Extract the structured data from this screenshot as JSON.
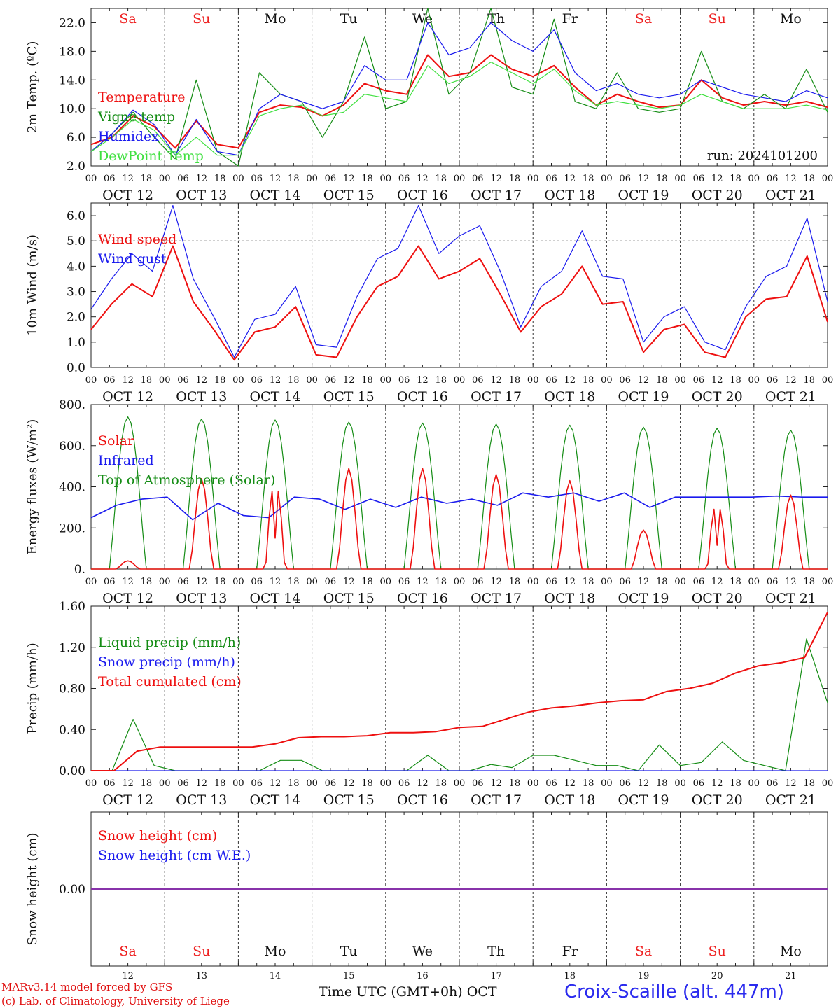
{
  "colors": {
    "red": "#ee1010",
    "darkgreen": "#148c14",
    "blue": "#1a1aee",
    "lightgreen": "#40e040",
    "purple": "#8833aa",
    "weekend": "#ee2020",
    "weekday": "#111111"
  },
  "days": {
    "weekday_labels": [
      "Sa",
      "Su",
      "Mo",
      "Tu",
      "We",
      "Th",
      "Fr",
      "Sa",
      "Su",
      "Mo"
    ],
    "weekend_flags": [
      true,
      true,
      false,
      false,
      false,
      false,
      false,
      true,
      true,
      false
    ],
    "date_labels": [
      "OCT 12",
      "OCT 13",
      "OCT 14",
      "OCT 15",
      "OCT 16",
      "OCT 17",
      "OCT 18",
      "OCT 19",
      "OCT 20",
      "OCT 21"
    ],
    "hour_ticks": [
      "00",
      "06",
      "12",
      "18"
    ],
    "end_hour": "00",
    "bottom_day_numbers": [
      "12",
      "13",
      "14",
      "15",
      "16",
      "17",
      "18",
      "19",
      "20",
      "21"
    ]
  },
  "footer": {
    "credit_line1": "MARv3.14 model forced by GFS",
    "credit_line2": "(c) Lab. of Climatology, University of Liege",
    "xaxis_title": "Time UTC (GMT+0h) OCT",
    "station": "Croix-Scaille (alt. 447m)"
  },
  "chart_data": [
    {
      "type": "line",
      "ylabel": "2m Temp. (ºC)",
      "ylim": [
        2,
        24
      ],
      "yticks": [
        "2.0",
        "6.0",
        "10.0",
        "14.0",
        "18.0",
        "22.0"
      ],
      "annotation": "run: 2024101200",
      "x_hours": [
        0,
        6,
        12,
        18,
        24,
        30,
        36,
        42,
        48,
        54,
        60,
        66,
        72,
        78,
        84,
        90,
        96,
        102,
        108,
        114,
        120,
        126,
        132,
        138,
        144,
        150,
        156,
        162,
        168,
        174,
        180,
        186,
        192,
        198,
        204,
        210,
        216,
        222,
        228,
        234,
        240
      ],
      "series": [
        {
          "name": "Temperature",
          "color": "red",
          "values": [
            5.0,
            6.0,
            9.0,
            7.5,
            4.5,
            8.3,
            5.0,
            4.5,
            9.5,
            10.5,
            10.2,
            9.0,
            10.5,
            13.5,
            12.5,
            12.0,
            17.5,
            14.5,
            15.0,
            17.5,
            15.5,
            14.5,
            16.0,
            13.0,
            10.5,
            12.0,
            11.0,
            10.2,
            10.5,
            14.0,
            11.5,
            10.5,
            11.0,
            10.5,
            11.0,
            10.2
          ]
        },
        {
          "name": "Vigne temp",
          "color": "darkgreen",
          "values": [
            4.0,
            6.5,
            9.5,
            6.0,
            3.0,
            14.0,
            4.0,
            2.0,
            15.0,
            12.0,
            11.0,
            6.0,
            11.0,
            20.0,
            10.0,
            11.0,
            24.0,
            12.0,
            15.0,
            24.0,
            13.0,
            12.0,
            22.5,
            11.0,
            10.0,
            15.0,
            10.0,
            9.5,
            10.0,
            18.0,
            11.0,
            10.0,
            12.0,
            10.0,
            15.5,
            9.5
          ]
        },
        {
          "name": "Humidex",
          "color": "blue",
          "values": [
            4.0,
            6.5,
            9.8,
            7.8,
            3.5,
            8.5,
            4.0,
            3.5,
            10.0,
            12.0,
            11.0,
            10.0,
            11.0,
            16.0,
            14.0,
            14.0,
            22.0,
            17.5,
            18.5,
            22.0,
            19.5,
            18.0,
            21.0,
            15.0,
            12.5,
            13.5,
            12.0,
            11.5,
            12.0,
            14.0,
            13.0,
            12.0,
            11.5,
            11.0,
            12.5,
            11.5
          ]
        },
        {
          "name": "DewPoint Temp",
          "color": "lightgreen",
          "values": [
            4.0,
            6.0,
            8.5,
            7.0,
            3.5,
            6.0,
            3.5,
            3.5,
            9.0,
            10.0,
            10.5,
            9.0,
            9.5,
            12.0,
            11.5,
            11.0,
            16.0,
            13.5,
            14.5,
            16.5,
            15.0,
            13.5,
            15.5,
            12.5,
            10.5,
            11.0,
            10.5,
            10.0,
            10.5,
            12.0,
            11.0,
            10.0,
            10.0,
            10.0,
            10.5,
            9.8
          ]
        }
      ]
    },
    {
      "type": "line",
      "ylabel": "10m Wind (m/s)",
      "ylim": [
        0,
        6.5
      ],
      "yticks": [
        "0.0",
        "1.0",
        "2.0",
        "3.0",
        "4.0",
        "5.0",
        "6.0"
      ],
      "x_hours": [
        0,
        6,
        12,
        18,
        24,
        30,
        36,
        42,
        48,
        54,
        60,
        66,
        72,
        78,
        84,
        90,
        96,
        102,
        108,
        114,
        120,
        126,
        132,
        138,
        144,
        150,
        156,
        162,
        168,
        174,
        180,
        186,
        192,
        198,
        204,
        210,
        216,
        222,
        228,
        234,
        240
      ],
      "series": [
        {
          "name": "Wind speed",
          "color": "red",
          "values": [
            1.5,
            2.5,
            3.3,
            2.8,
            4.8,
            2.6,
            1.5,
            0.3,
            1.4,
            1.6,
            2.4,
            0.5,
            0.4,
            2.0,
            3.2,
            3.6,
            4.8,
            3.5,
            3.8,
            4.3,
            2.9,
            1.4,
            2.4,
            2.9,
            4.0,
            2.5,
            2.6,
            0.6,
            1.5,
            1.7,
            0.6,
            0.4,
            2.0,
            2.7,
            2.8,
            4.4,
            1.8
          ]
        },
        {
          "name": "Wind gust",
          "color": "blue",
          "values": [
            2.3,
            3.5,
            4.5,
            3.8,
            6.4,
            3.5,
            2.0,
            0.4,
            1.9,
            2.1,
            3.2,
            0.9,
            0.8,
            2.8,
            4.3,
            4.7,
            6.4,
            4.5,
            5.2,
            5.6,
            3.8,
            1.6,
            3.2,
            3.8,
            5.4,
            3.6,
            3.5,
            1.0,
            2.0,
            2.4,
            1.0,
            0.7,
            2.4,
            3.6,
            4.0,
            5.9,
            2.6
          ]
        }
      ]
    },
    {
      "type": "line",
      "ylabel": "Energy fluxes (W/m²)",
      "ylim": [
        0,
        800
      ],
      "yticks": [
        "0.",
        "200.",
        "400.",
        "600.",
        "800."
      ],
      "x_hours": [
        0,
        6,
        12,
        18,
        24,
        30,
        36,
        42,
        48,
        54,
        60,
        66,
        72,
        78,
        84,
        90,
        96,
        102,
        108,
        114,
        120,
        126,
        132,
        138,
        144,
        150,
        156,
        162,
        168,
        174,
        180,
        186,
        192,
        198,
        204,
        210,
        216,
        222,
        228,
        234,
        240
      ],
      "series": [
        {
          "name": "Solar",
          "color": "red",
          "peak_values": [
            40,
            440,
            430,
            490,
            490,
            460,
            430,
            190,
            330,
            360
          ]
        },
        {
          "name": "Infrared",
          "color": "blue",
          "values": [
            250,
            310,
            340,
            350,
            240,
            320,
            260,
            250,
            350,
            340,
            290,
            340,
            300,
            350,
            320,
            340,
            310,
            370,
            350,
            370,
            330,
            370,
            300,
            350,
            350,
            350,
            350,
            355,
            350,
            350
          ]
        },
        {
          "name": "Top of Atmosphere (Solar)",
          "color": "darkgreen",
          "peak_values": [
            740,
            730,
            725,
            715,
            710,
            705,
            700,
            690,
            685,
            675
          ]
        }
      ]
    },
    {
      "type": "line",
      "ylabel": "Precip (mm/h)",
      "ylim": [
        0,
        1.6
      ],
      "yticks": [
        "0.00",
        "0.40",
        "0.80",
        "1.20",
        "1.60"
      ],
      "x_hours": [
        0,
        6,
        12,
        18,
        24,
        30,
        36,
        42,
        48,
        54,
        60,
        66,
        72,
        78,
        84,
        90,
        96,
        102,
        108,
        114,
        120,
        126,
        132,
        138,
        144,
        150,
        156,
        162,
        168,
        174,
        180,
        186,
        192,
        198,
        204,
        210,
        216,
        222,
        228,
        234,
        240
      ],
      "series": [
        {
          "name": "Liquid precip (mm/h)",
          "color": "darkgreen",
          "values": [
            0,
            0,
            0.5,
            0.05,
            0,
            0,
            0,
            0,
            0,
            0.1,
            0.1,
            0,
            0,
            0,
            0,
            0,
            0.15,
            0,
            0,
            0.06,
            0.03,
            0.15,
            0.15,
            0.1,
            0.05,
            0.05,
            0,
            0.25,
            0.05,
            0.08,
            0.28,
            0.1,
            0.05,
            0,
            1.28,
            0.66
          ]
        },
        {
          "name": "Snow precip (mm/h)",
          "color": "blue",
          "values": [
            0,
            0,
            0,
            0,
            0,
            0,
            0,
            0,
            0,
            0,
            0,
            0,
            0,
            0,
            0,
            0,
            0,
            0,
            0,
            0,
            0,
            0,
            0,
            0,
            0,
            0,
            0,
            0,
            0,
            0,
            0,
            0,
            0,
            0,
            0,
            0
          ]
        },
        {
          "name": "Total cumulated (cm)",
          "color": "red",
          "values": [
            0,
            0,
            0.19,
            0.23,
            0.23,
            0.23,
            0.23,
            0.23,
            0.26,
            0.32,
            0.33,
            0.33,
            0.34,
            0.37,
            0.37,
            0.38,
            0.42,
            0.43,
            0.5,
            0.57,
            0.61,
            0.63,
            0.66,
            0.68,
            0.69,
            0.77,
            0.8,
            0.85,
            0.95,
            1.02,
            1.05,
            1.1,
            1.54
          ]
        }
      ]
    },
    {
      "type": "line",
      "ylabel": "Snow height (cm)",
      "ylim": [
        -1,
        1
      ],
      "yticks": [
        "0.00"
      ],
      "series": [
        {
          "name": "Snow height (cm)",
          "color": "red",
          "values": [
            0,
            0
          ]
        },
        {
          "name": "Snow height (cm W.E.)",
          "color": "blue",
          "values": [
            0,
            0
          ]
        }
      ]
    }
  ]
}
